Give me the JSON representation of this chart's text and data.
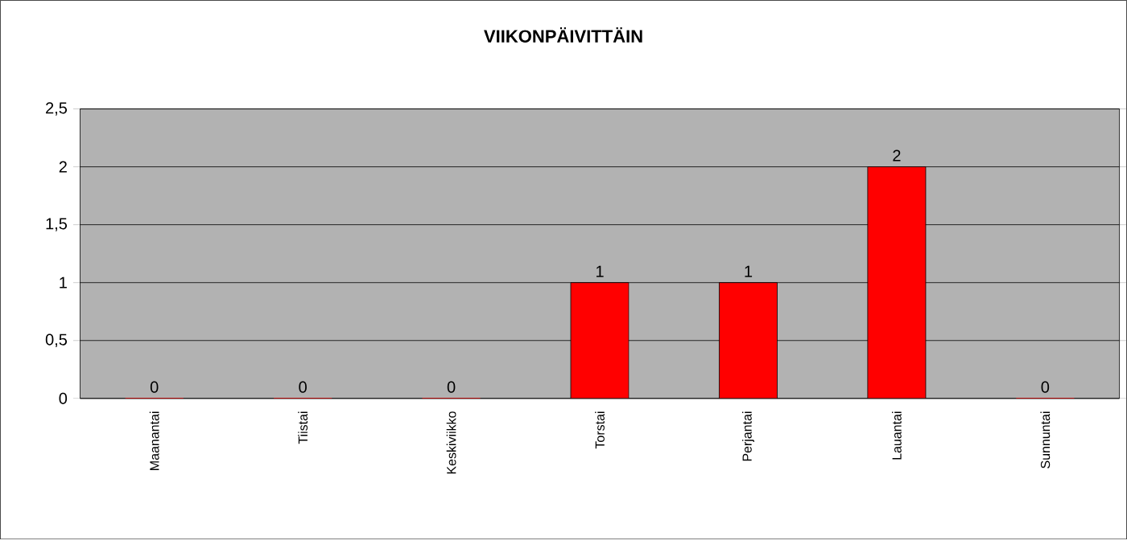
{
  "chart_data": {
    "type": "bar",
    "title": "VIIKONPÄIVITTÄIN",
    "categories": [
      "Maanantai",
      "Tiistai",
      "Keskiviikko",
      "Torstai",
      "Perjantai",
      "Lauantai",
      "Sunnuntai"
    ],
    "values": [
      0,
      0,
      0,
      1,
      1,
      2,
      0
    ],
    "color": "#ff0000",
    "ylim": [
      0,
      2.5
    ],
    "yticks": [
      0,
      {
        "value": 0.5,
        "label": "0,5"
      },
      1,
      {
        "value": 1.5,
        "label": "1,5"
      },
      2,
      {
        "value": 2.5,
        "label": "2,5"
      }
    ],
    "grid": "y",
    "data_labels": true
  }
}
